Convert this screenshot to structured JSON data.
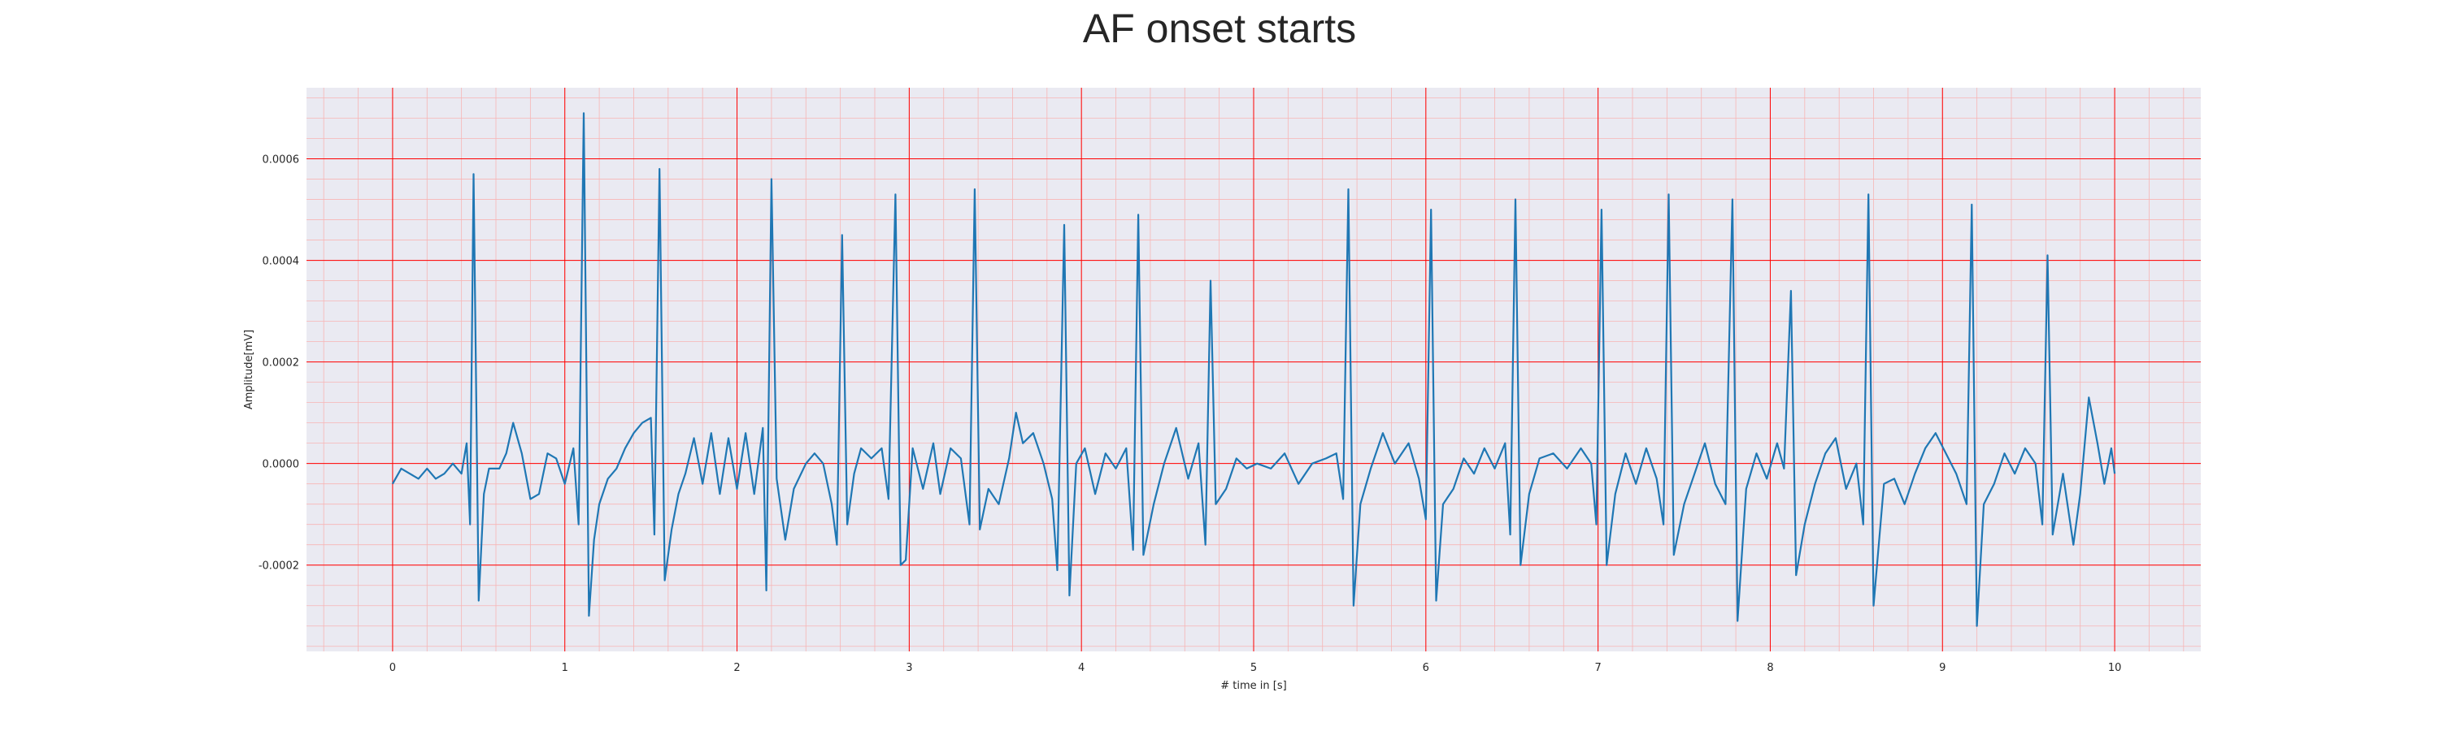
{
  "chart_data": {
    "type": "line",
    "title": "AF onset starts",
    "xlabel": "# time in [s]",
    "ylabel": "Amplitude[mV]",
    "xlim": [
      -0.5,
      10.5
    ],
    "ylim": [
      -0.00037,
      0.00074
    ],
    "x_ticks": [
      0,
      1,
      2,
      3,
      4,
      5,
      6,
      7,
      8,
      9,
      10
    ],
    "x_tick_labels": [
      "0",
      "1",
      "2",
      "3",
      "4",
      "5",
      "6",
      "7",
      "8",
      "9",
      "10"
    ],
    "y_ticks": [
      -0.0002,
      0.0,
      0.0002,
      0.0004,
      0.0006
    ],
    "y_tick_labels": [
      "-0.0002",
      "0.0000",
      "0.0002",
      "0.0004",
      "0.0006"
    ],
    "grid": true,
    "minor_grid": true,
    "legend": "none",
    "colors": {
      "line": "#1f77b4",
      "plot_background": "#eaeaf2",
      "major_grid": "#ff0000",
      "minor_grid": "#f7b5b5"
    },
    "series": [
      {
        "values_note_removed": true,
        "points": [
          [
            0.0,
            -4e-05
          ],
          [
            0.05,
            -1e-05
          ],
          [
            0.1,
            -2e-05
          ],
          [
            0.15,
            -3e-05
          ],
          [
            0.2,
            -1e-05
          ],
          [
            0.25,
            -3e-05
          ],
          [
            0.3,
            -2e-05
          ],
          [
            0.35,
            0.0
          ],
          [
            0.4,
            -2e-05
          ],
          [
            0.43,
            4e-05
          ],
          [
            0.45,
            -0.00012
          ],
          [
            0.47,
            0.00057
          ],
          [
            0.5,
            -0.00027
          ],
          [
            0.53,
            -6e-05
          ],
          [
            0.56,
            -1e-05
          ],
          [
            0.62,
            -1e-05
          ],
          [
            0.66,
            2e-05
          ],
          [
            0.7,
            8e-05
          ],
          [
            0.75,
            2e-05
          ],
          [
            0.8,
            -7e-05
          ],
          [
            0.85,
            -6e-05
          ],
          [
            0.9,
            2e-05
          ],
          [
            0.95,
            1e-05
          ],
          [
            1.0,
            -4e-05
          ],
          [
            1.05,
            3e-05
          ],
          [
            1.08,
            -0.00012
          ],
          [
            1.11,
            0.00069
          ],
          [
            1.14,
            -0.0003
          ],
          [
            1.17,
            -0.00015
          ],
          [
            1.2,
            -8e-05
          ],
          [
            1.25,
            -3e-05
          ],
          [
            1.3,
            -1e-05
          ],
          [
            1.35,
            3e-05
          ],
          [
            1.4,
            6e-05
          ],
          [
            1.45,
            8e-05
          ],
          [
            1.5,
            9e-05
          ],
          [
            1.52,
            -0.00014
          ],
          [
            1.55,
            0.00058
          ],
          [
            1.58,
            -0.00023
          ],
          [
            1.62,
            -0.00013
          ],
          [
            1.66,
            -6e-05
          ],
          [
            1.7,
            -2e-05
          ],
          [
            1.75,
            5e-05
          ],
          [
            1.8,
            -4e-05
          ],
          [
            1.85,
            6e-05
          ],
          [
            1.9,
            -6e-05
          ],
          [
            1.95,
            5e-05
          ],
          [
            2.0,
            -5e-05
          ],
          [
            2.05,
            6e-05
          ],
          [
            2.1,
            -6e-05
          ],
          [
            2.15,
            7e-05
          ],
          [
            2.17,
            -0.00025
          ],
          [
            2.2,
            0.00056
          ],
          [
            2.23,
            -3e-05
          ],
          [
            2.28,
            -0.00015
          ],
          [
            2.33,
            -5e-05
          ],
          [
            2.4,
            0.0
          ],
          [
            2.45,
            2e-05
          ],
          [
            2.5,
            0.0
          ],
          [
            2.55,
            -8e-05
          ],
          [
            2.58,
            -0.00016
          ],
          [
            2.61,
            0.00045
          ],
          [
            2.64,
            -0.00012
          ],
          [
            2.68,
            -2e-05
          ],
          [
            2.72,
            3e-05
          ],
          [
            2.78,
            1e-05
          ],
          [
            2.84,
            3e-05
          ],
          [
            2.88,
            -7e-05
          ],
          [
            2.92,
            0.00053
          ],
          [
            2.95,
            -0.0002
          ],
          [
            2.98,
            -0.00019
          ],
          [
            3.02,
            3e-05
          ],
          [
            3.08,
            -5e-05
          ],
          [
            3.14,
            4e-05
          ],
          [
            3.18,
            -6e-05
          ],
          [
            3.24,
            3e-05
          ],
          [
            3.3,
            1e-05
          ],
          [
            3.35,
            -0.00012
          ],
          [
            3.38,
            0.00054
          ],
          [
            3.41,
            -0.00013
          ],
          [
            3.46,
            -5e-05
          ],
          [
            3.52,
            -8e-05
          ],
          [
            3.58,
            1e-05
          ],
          [
            3.62,
            0.0001
          ],
          [
            3.66,
            4e-05
          ],
          [
            3.72,
            6e-05
          ],
          [
            3.78,
            0.0
          ],
          [
            3.83,
            -7e-05
          ],
          [
            3.86,
            -0.00021
          ],
          [
            3.9,
            0.00047
          ],
          [
            3.93,
            -0.00026
          ],
          [
            3.97,
            0.0
          ],
          [
            4.02,
            3e-05
          ],
          [
            4.08,
            -6e-05
          ],
          [
            4.14,
            2e-05
          ],
          [
            4.2,
            -1e-05
          ],
          [
            4.26,
            3e-05
          ],
          [
            4.3,
            -0.00017
          ],
          [
            4.33,
            0.00049
          ],
          [
            4.36,
            -0.00018
          ],
          [
            4.42,
            -8e-05
          ],
          [
            4.48,
            0.0
          ],
          [
            4.55,
            7e-05
          ],
          [
            4.62,
            -3e-05
          ],
          [
            4.68,
            4e-05
          ],
          [
            4.72,
            -0.00016
          ],
          [
            4.75,
            0.00036
          ],
          [
            4.78,
            -8e-05
          ],
          [
            4.84,
            -5e-05
          ],
          [
            4.9,
            1e-05
          ],
          [
            4.96,
            -1e-05
          ],
          [
            5.02,
            0.0
          ],
          [
            5.1,
            -1e-05
          ],
          [
            5.18,
            2e-05
          ],
          [
            5.26,
            -4e-05
          ],
          [
            5.34,
            0.0
          ],
          [
            5.42,
            1e-05
          ],
          [
            5.48,
            2e-05
          ],
          [
            5.52,
            -7e-05
          ],
          [
            5.55,
            0.00054
          ],
          [
            5.58,
            -0.00028
          ],
          [
            5.62,
            -8e-05
          ],
          [
            5.68,
            -1e-05
          ],
          [
            5.75,
            6e-05
          ],
          [
            5.82,
            0.0
          ],
          [
            5.9,
            4e-05
          ],
          [
            5.96,
            -3e-05
          ],
          [
            6.0,
            -0.00011
          ],
          [
            6.03,
            0.0005
          ],
          [
            6.06,
            -0.00027
          ],
          [
            6.1,
            -8e-05
          ],
          [
            6.16,
            -5e-05
          ],
          [
            6.22,
            1e-05
          ],
          [
            6.28,
            -2e-05
          ],
          [
            6.34,
            3e-05
          ],
          [
            6.4,
            -1e-05
          ],
          [
            6.46,
            4e-05
          ],
          [
            6.49,
            -0.00014
          ],
          [
            6.52,
            0.00052
          ],
          [
            6.55,
            -0.0002
          ],
          [
            6.6,
            -6e-05
          ],
          [
            6.66,
            1e-05
          ],
          [
            6.74,
            2e-05
          ],
          [
            6.82,
            -1e-05
          ],
          [
            6.9,
            3e-05
          ],
          [
            6.96,
            0.0
          ],
          [
            6.99,
            -0.00012
          ],
          [
            7.02,
            0.0005
          ],
          [
            7.05,
            -0.0002
          ],
          [
            7.1,
            -6e-05
          ],
          [
            7.16,
            2e-05
          ],
          [
            7.22,
            -4e-05
          ],
          [
            7.28,
            3e-05
          ],
          [
            7.34,
            -3e-05
          ],
          [
            7.38,
            -0.00012
          ],
          [
            7.41,
            0.00053
          ],
          [
            7.44,
            -0.00018
          ],
          [
            7.5,
            -8e-05
          ],
          [
            7.56,
            -2e-05
          ],
          [
            7.62,
            4e-05
          ],
          [
            7.68,
            -4e-05
          ],
          [
            7.74,
            -8e-05
          ],
          [
            7.78,
            0.00052
          ],
          [
            7.81,
            -0.00031
          ],
          [
            7.86,
            -5e-05
          ],
          [
            7.92,
            2e-05
          ],
          [
            7.98,
            -3e-05
          ],
          [
            8.04,
            4e-05
          ],
          [
            8.08,
            -1e-05
          ],
          [
            8.12,
            0.00034
          ],
          [
            8.15,
            -0.00022
          ],
          [
            8.2,
            -0.00012
          ],
          [
            8.26,
            -4e-05
          ],
          [
            8.32,
            2e-05
          ],
          [
            8.38,
            5e-05
          ],
          [
            8.44,
            -5e-05
          ],
          [
            8.5,
            0.0
          ],
          [
            8.54,
            -0.00012
          ],
          [
            8.57,
            0.00053
          ],
          [
            8.6,
            -0.00028
          ],
          [
            8.66,
            -4e-05
          ],
          [
            8.72,
            -3e-05
          ],
          [
            8.78,
            -8e-05
          ],
          [
            8.84,
            -2e-05
          ],
          [
            8.9,
            3e-05
          ],
          [
            8.96,
            6e-05
          ],
          [
            9.02,
            2e-05
          ],
          [
            9.08,
            -2e-05
          ],
          [
            9.14,
            -8e-05
          ],
          [
            9.17,
            0.00051
          ],
          [
            9.2,
            -0.00032
          ],
          [
            9.24,
            -8e-05
          ],
          [
            9.3,
            -4e-05
          ],
          [
            9.36,
            2e-05
          ],
          [
            9.42,
            -2e-05
          ],
          [
            9.48,
            3e-05
          ],
          [
            9.54,
            0.0
          ],
          [
            9.58,
            -0.00012
          ],
          [
            9.61,
            0.00041
          ],
          [
            9.64,
            -0.00014
          ],
          [
            9.7,
            -2e-05
          ],
          [
            9.76,
            -0.00016
          ],
          [
            9.8,
            -6e-05
          ],
          [
            9.85,
            0.00013
          ],
          [
            9.9,
            4e-05
          ],
          [
            9.94,
            -4e-05
          ],
          [
            9.98,
            3e-05
          ],
          [
            10.0,
            -2e-05
          ]
        ]
      }
    ]
  }
}
